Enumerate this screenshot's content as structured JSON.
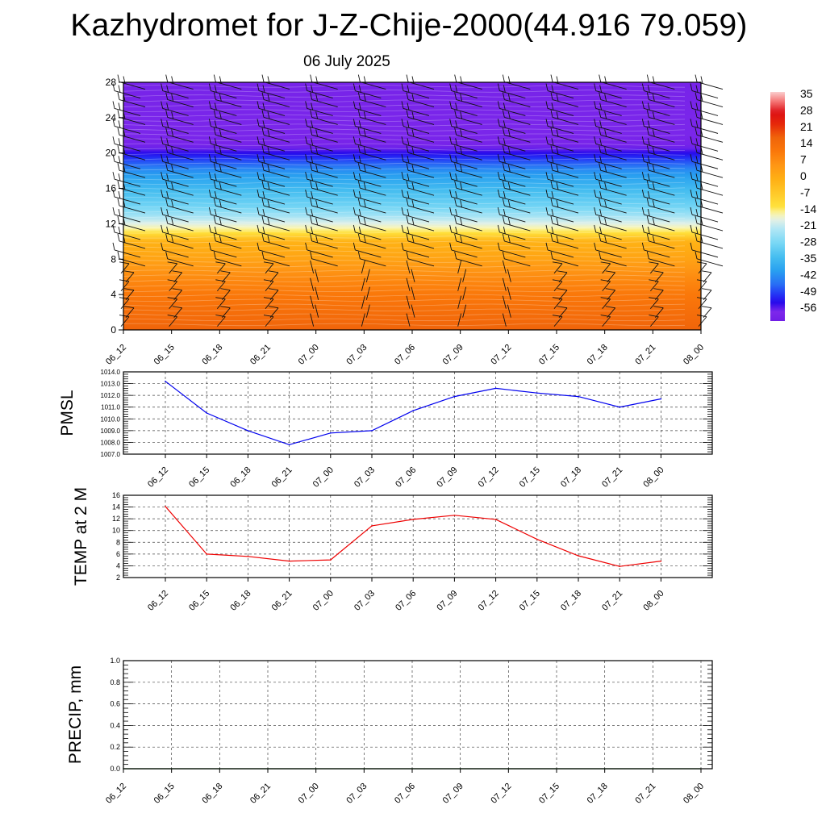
{
  "header": {
    "title": "Kazhydromet for J-Z-Chije-2000(44.916 79.059)",
    "subtitle": "06 July 2025"
  },
  "chart_data": [
    {
      "type": "heatmap",
      "title": "",
      "xlabel": "",
      "ylabel": "",
      "x_ticks": [
        "06_12",
        "06_15",
        "06_18",
        "06_21",
        "07_00",
        "07_03",
        "07_06",
        "07_09",
        "07_12",
        "07_15",
        "07_18",
        "07_21",
        "08_00"
      ],
      "y_ticks": [
        0,
        4,
        8,
        12,
        16,
        20,
        24,
        28
      ],
      "ylim": [
        0,
        28
      ],
      "temperature_profile": {
        "height": [
          0,
          2,
          4,
          6,
          8,
          10,
          11,
          12,
          13,
          14,
          16,
          18,
          19,
          20,
          21,
          22,
          24,
          28
        ],
        "value": [
          20,
          17,
          14,
          10,
          5,
          1,
          -10,
          -16,
          -22,
          -27,
          -33,
          -40,
          -46,
          -52,
          -58,
          -57,
          -57,
          -58
        ]
      },
      "colorbar": {
        "labels": [
          "35",
          "28",
          "21",
          "14",
          "7",
          "0",
          "-7",
          "-14",
          "-21",
          "-28",
          "-35",
          "-42",
          "-49",
          "-56"
        ],
        "range": [
          -60,
          40
        ]
      },
      "wind_barbs": true
    },
    {
      "type": "line",
      "ylabel": "PMSL",
      "categories": [
        "06_12",
        "06_15",
        "06_18",
        "06_21",
        "07_00",
        "07_03",
        "07_06",
        "07_09",
        "07_12",
        "07_15",
        "07_18",
        "07_21",
        "08_00"
      ],
      "values": [
        1013.2,
        1010.5,
        1009.0,
        1007.8,
        1008.8,
        1009.0,
        1010.7,
        1011.9,
        1012.6,
        1012.2,
        1011.9,
        1011.0,
        1011.7
      ],
      "ylim": [
        1007,
        1014
      ],
      "y_ticks": [
        "1007.0",
        "1008.0",
        "1009.0",
        "1010.0",
        "1011.0",
        "1012.0",
        "1013.0",
        "1014.0"
      ],
      "color": "#0000ee",
      "grid": true
    },
    {
      "type": "line",
      "ylabel": "TEMP at 2 M",
      "categories": [
        "06_12",
        "06_15",
        "06_18",
        "06_21",
        "07_00",
        "07_03",
        "07_06",
        "07_09",
        "07_12",
        "07_15",
        "07_18",
        "07_21",
        "08_00"
      ],
      "values": [
        14.1,
        6.0,
        5.6,
        4.8,
        5.0,
        10.8,
        11.9,
        12.6,
        11.9,
        8.5,
        5.7,
        3.9,
        4.8
      ],
      "ylim": [
        2,
        16
      ],
      "y_ticks": [
        "2",
        "4",
        "6",
        "8",
        "10",
        "12",
        "14",
        "16"
      ],
      "color": "#ee0000",
      "grid": true
    },
    {
      "type": "line",
      "ylabel": "PRECIP, mm",
      "categories": [
        "06_12",
        "06_15",
        "06_18",
        "06_21",
        "07_00",
        "07_03",
        "07_06",
        "07_09",
        "07_12",
        "07_15",
        "07_18",
        "07_21",
        "08_00"
      ],
      "values": [
        0,
        0,
        0,
        0,
        0,
        0,
        0,
        0,
        0,
        0,
        0,
        0,
        0
      ],
      "ylim": [
        0,
        1
      ],
      "y_ticks": [
        "0.0",
        "0.2",
        "0.4",
        "0.6",
        "0.8",
        "1.0"
      ],
      "color": "#006400",
      "grid": true
    }
  ]
}
